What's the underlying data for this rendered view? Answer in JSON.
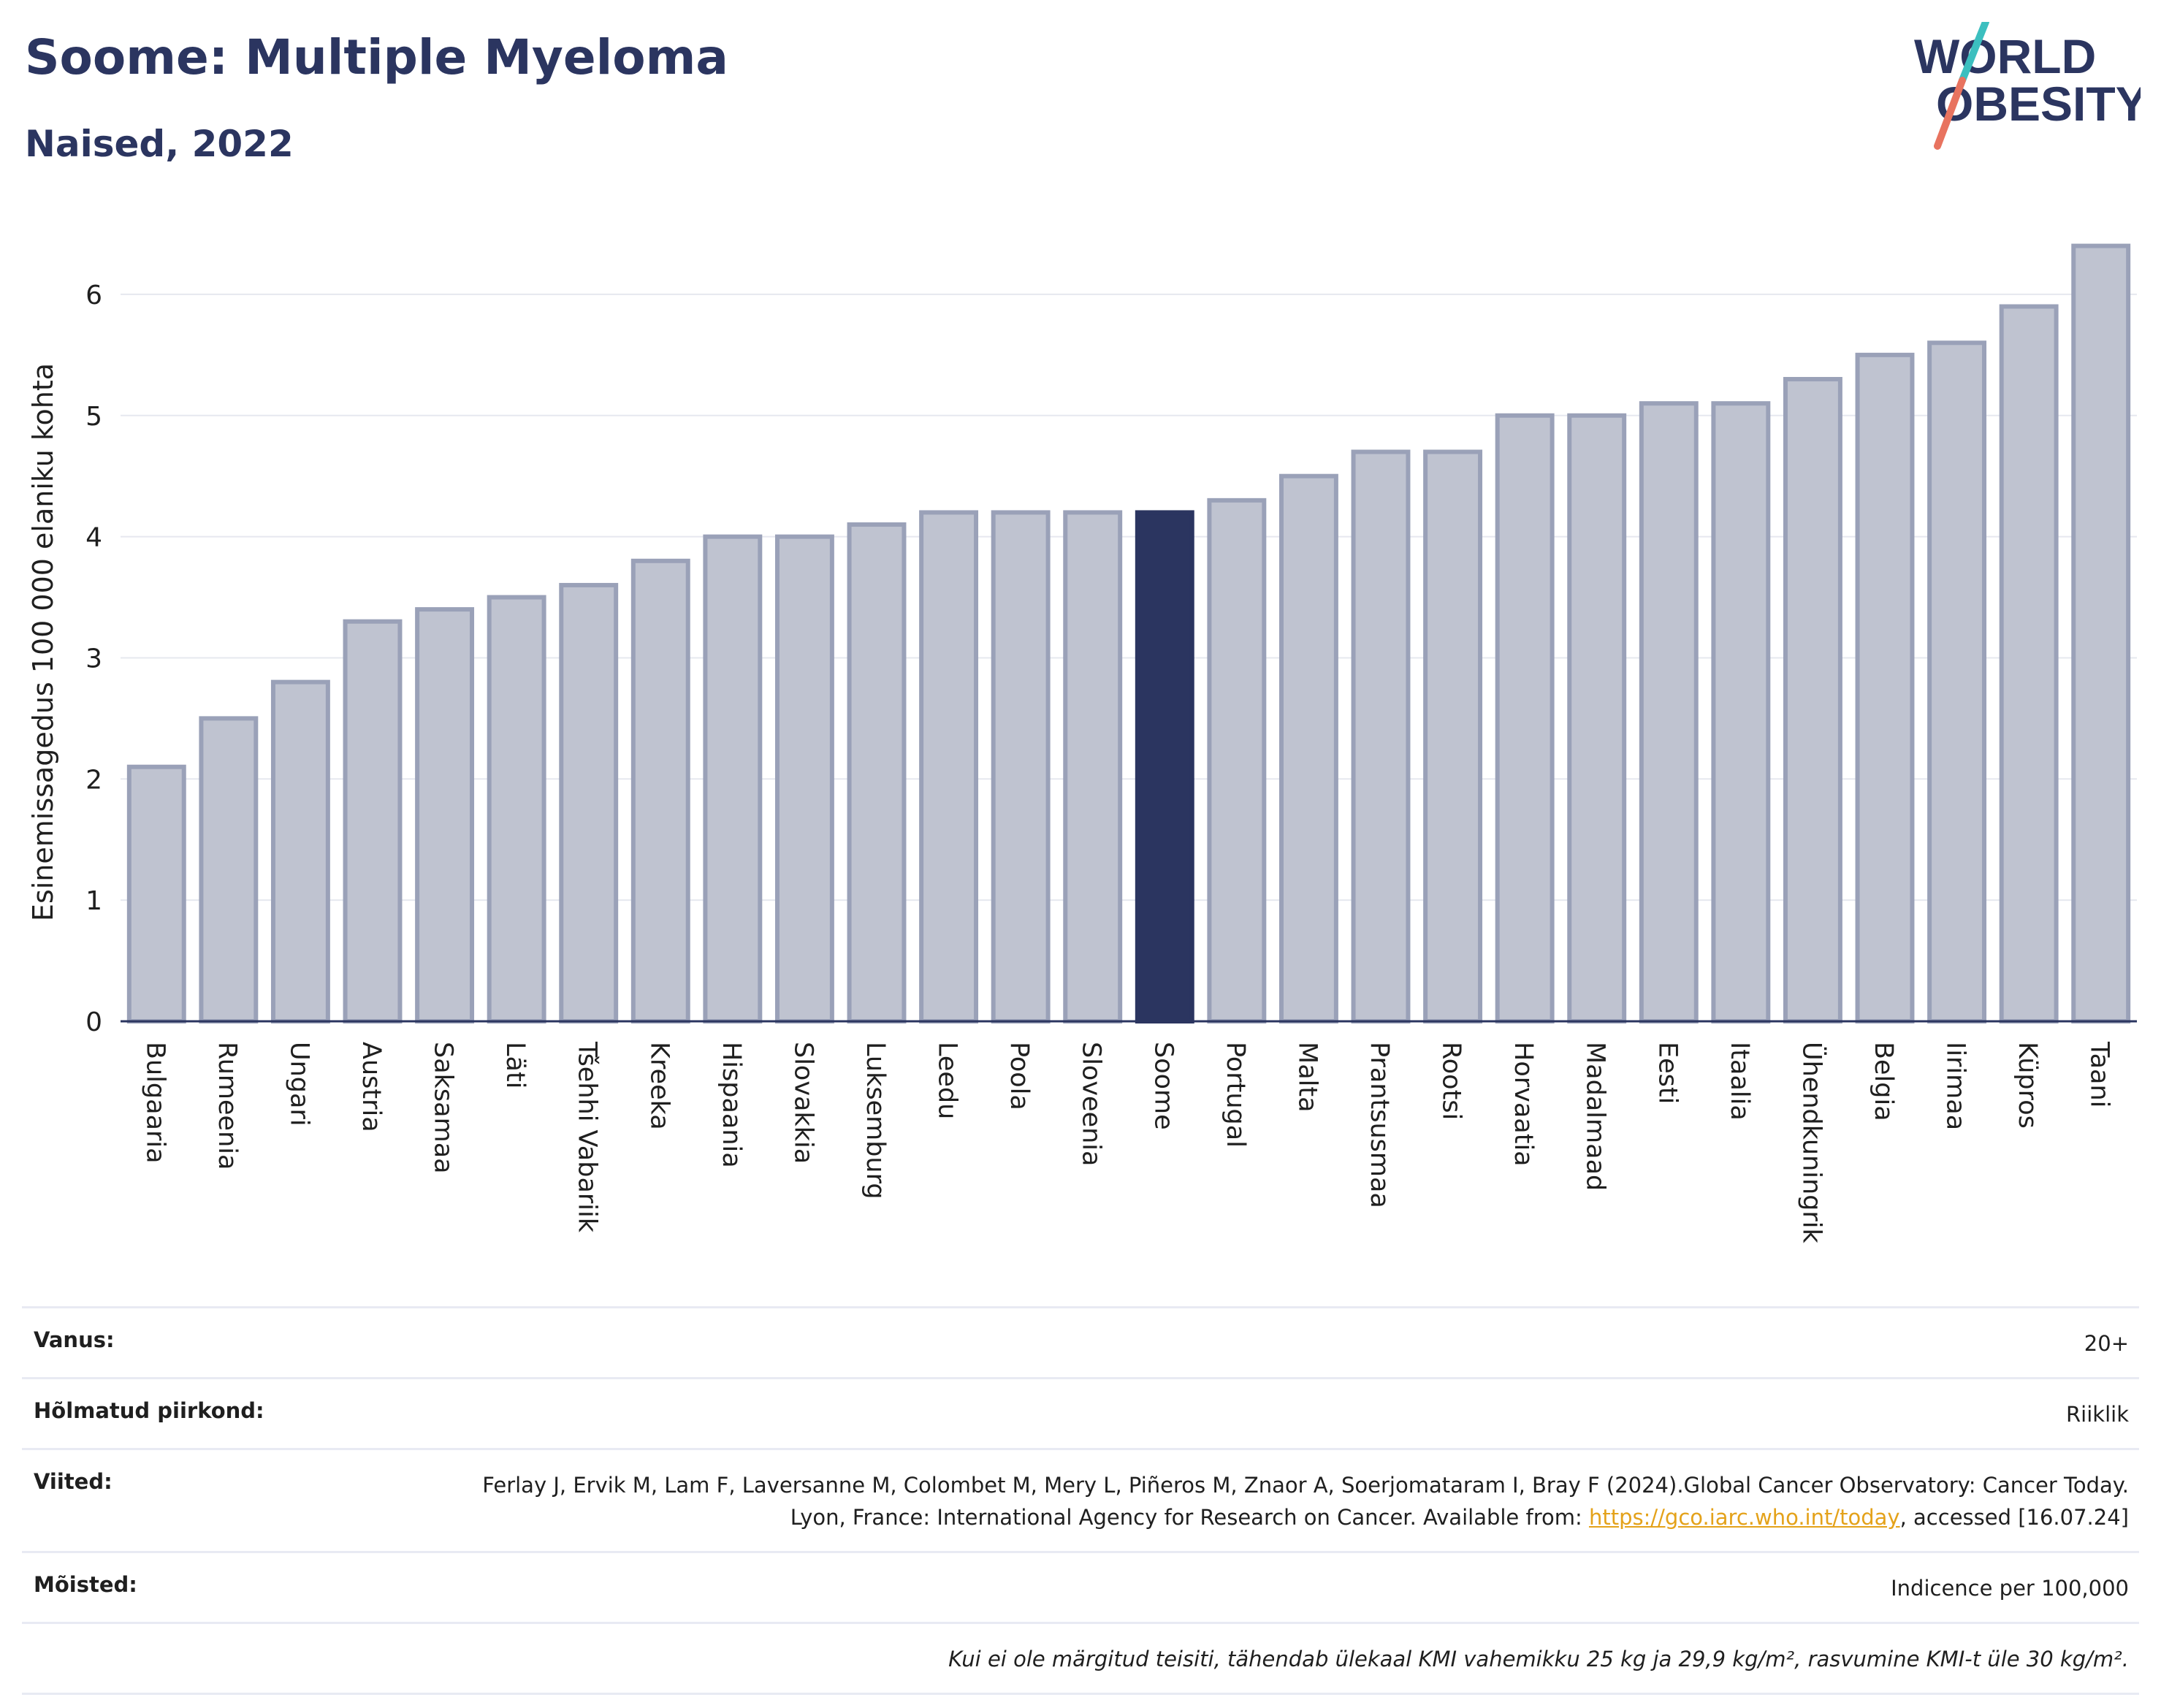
{
  "header": {
    "title": "Soome: Multiple Myeloma",
    "subtitle": "Naised, 2022"
  },
  "logo": {
    "line1": "WORLD",
    "line2": "OBESITY",
    "accent_teal": "#3cbfbf",
    "accent_coral": "#e8735f"
  },
  "colors": {
    "bar": "#bfc3d0",
    "bar_border": "#9aa1b8",
    "highlight": "#2b3560",
    "grid": "#e6e8ef"
  },
  "chart_data": {
    "type": "bar",
    "ylabel": "Esinemissagedus 100 000 elaniku kohta",
    "ylim": [
      0,
      6.5
    ],
    "yticks": [
      0,
      1,
      2,
      3,
      4,
      5,
      6
    ],
    "grid": true,
    "highlight": "Soome",
    "categories": [
      "Bulgaaria",
      "Rumeenia",
      "Ungari",
      "Austria",
      "Saksamaa",
      "Läti",
      "Tšehhi Vabariik",
      "Kreeka",
      "Hispaania",
      "Slovakkia",
      "Luksemburg",
      "Leedu",
      "Poola",
      "Sloveenia",
      "Soome",
      "Portugal",
      "Malta",
      "Prantsusmaa",
      "Rootsi",
      "Horvaatia",
      "Madalmaad",
      "Eesti",
      "Itaalia",
      "Ühendkuningrik",
      "Belgia",
      "Iirimaa",
      "Küpros",
      "Taani"
    ],
    "values": [
      2.1,
      2.5,
      2.8,
      3.3,
      3.4,
      3.5,
      3.6,
      3.8,
      4.0,
      4.0,
      4.1,
      4.2,
      4.2,
      4.2,
      4.2,
      4.3,
      4.5,
      4.7,
      4.7,
      5.0,
      5.0,
      5.1,
      5.1,
      5.3,
      5.5,
      5.6,
      5.9,
      6.4
    ]
  },
  "info": {
    "age_label": "Vanus:",
    "age_value": "20+",
    "region_label": "Hõlmatud piirkond:",
    "region_value": "Riiklik",
    "refs_label": "Viited:",
    "refs_text": "Ferlay J, Ervik M, Lam F, Laversanne M, Colombet M, Mery L, Piñeros M, Znaor A, Soerjomataram I, Bray F (2024).Global Cancer Observatory: Cancer Today. Lyon, France: International Agency for Research on Cancer. Available from: ",
    "refs_link": "https://gco.iarc.who.int/today",
    "refs_tail": ", accessed [16.07.24]",
    "defs_label": "Mõisted:",
    "defs_value": "Indicence per 100,000",
    "note": "Kui ei ole märgitud teisiti, tähendab ülekaal KMI vahemikku 25 kg ja 29,9 kg/m², rasvumine KMI-t üle 30 kg/m²."
  }
}
